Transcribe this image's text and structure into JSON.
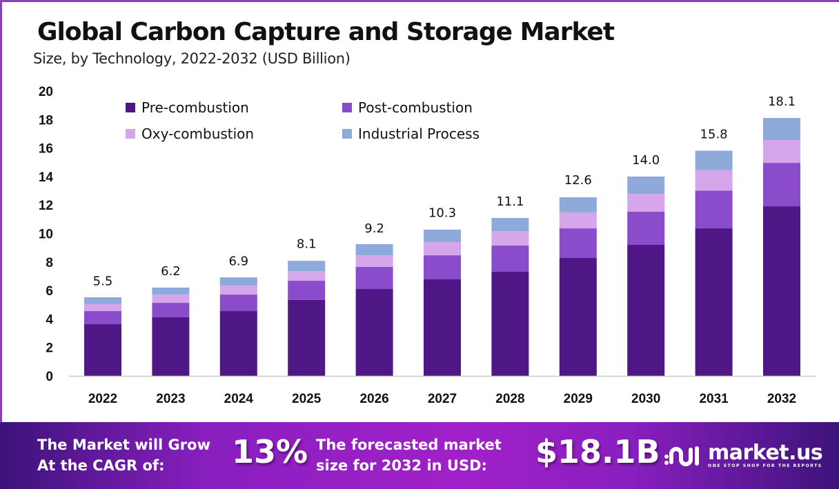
{
  "header": {
    "title": "Global Carbon Capture and Storage Market",
    "subtitle": "Size, by Technology, 2022-2032 (USD Billion)"
  },
  "colors": {
    "pre_combustion": "#4f1786",
    "post_combustion": "#8a4ccb",
    "oxy_combustion": "#d5a6ea",
    "industrial_process": "#8eaadb",
    "banner_dark": "#3d137a",
    "banner_light": "#a020c8"
  },
  "chart_data": {
    "type": "bar",
    "stacked": true,
    "title": "Global Carbon Capture and Storage Market",
    "subtitle": "Size, by Technology, 2022-2032 (USD Billion)",
    "xlabel": "",
    "ylabel": "",
    "ylim": [
      0,
      20
    ],
    "yticks": [
      0,
      2,
      4,
      6,
      8,
      10,
      12,
      14,
      16,
      18,
      20
    ],
    "grid": false,
    "legend_position": "top-left",
    "categories": [
      "2022",
      "2023",
      "2024",
      "2025",
      "2026",
      "2027",
      "2028",
      "2029",
      "2030",
      "2031",
      "2032"
    ],
    "series": [
      {
        "name": "Pre-combustion",
        "color": "#4f1786",
        "values": [
          3.63,
          4.12,
          4.55,
          5.33,
          6.1,
          6.78,
          7.31,
          8.28,
          9.2,
          10.36,
          11.91
        ]
      },
      {
        "name": "Post-combustion",
        "color": "#8a4ccb",
        "values": [
          0.92,
          1.01,
          1.16,
          1.35,
          1.55,
          1.69,
          1.84,
          2.08,
          2.33,
          2.65,
          3.05
        ]
      },
      {
        "name": "Oxy-combustion",
        "color": "#d5a6ea",
        "values": [
          0.49,
          0.58,
          0.63,
          0.68,
          0.82,
          0.92,
          1.02,
          1.12,
          1.25,
          1.43,
          1.6
        ]
      },
      {
        "name": "Industrial Process",
        "color": "#8eaadb",
        "values": [
          0.48,
          0.49,
          0.58,
          0.72,
          0.78,
          0.88,
          0.92,
          1.06,
          1.22,
          1.37,
          1.55
        ]
      }
    ],
    "totals": [
      5.5,
      6.2,
      6.9,
      8.1,
      9.2,
      10.3,
      11.1,
      12.6,
      14.0,
      15.8,
      18.1
    ],
    "total_labels": [
      "5.5",
      "6.2",
      "6.9",
      "8.1",
      "9.2",
      "10.3",
      "11.1",
      "12.6",
      "14.0",
      "15.8",
      "18.1"
    ]
  },
  "banner": {
    "cagr_line1": "The Market will Grow",
    "cagr_line2": "At the CAGR of:",
    "cagr_value": "13%",
    "forecast_line1": "The forecasted market",
    "forecast_line2": "size for 2032 in USD:",
    "forecast_value": "$18.1B",
    "logo_name": "market.us",
    "logo_tagline": "ONE STOP SHOP FOR THE REPORTS"
  }
}
